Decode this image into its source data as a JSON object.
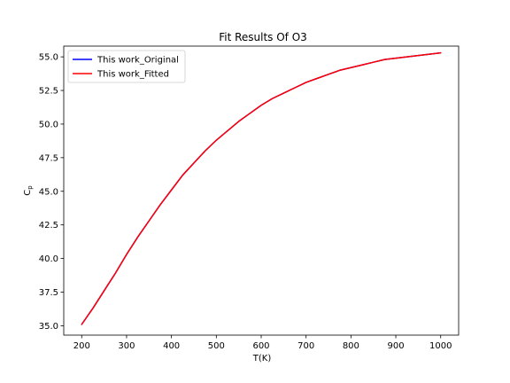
{
  "chart_data": {
    "type": "line",
    "title": "Fit Results Of O3",
    "xlabel": "T(K)",
    "ylabel": "Cp",
    "ylabel_main": "C",
    "ylabel_sub": "p",
    "xlim": [
      160,
      1040
    ],
    "ylim": [
      34.3,
      55.8
    ],
    "xticks": [
      200,
      300,
      400,
      500,
      600,
      700,
      800,
      900,
      1000
    ],
    "xtick_labels": [
      "200",
      "300",
      "400",
      "500",
      "600",
      "700",
      "800",
      "900",
      "1000"
    ],
    "yticks": [
      35.0,
      37.5,
      40.0,
      42.5,
      45.0,
      47.5,
      50.0,
      52.5,
      55.0
    ],
    "ytick_labels": [
      "35.0",
      "37.5",
      "40.0",
      "42.5",
      "45.0",
      "47.5",
      "50.0",
      "52.5",
      "55.0"
    ],
    "grid": false,
    "legend_position": "top-left",
    "x": [
      200,
      225,
      250,
      275,
      300,
      325,
      350,
      375,
      400,
      425,
      450,
      475,
      500,
      525,
      550,
      575,
      600,
      625,
      650,
      675,
      700,
      725,
      750,
      775,
      800,
      825,
      850,
      875,
      900,
      925,
      950,
      975,
      1000
    ],
    "series": [
      {
        "name": "This work_Original",
        "color": "#0000ff",
        "values": [
          35.1,
          36.3,
          37.6,
          38.9,
          40.3,
          41.6,
          42.8,
          44.0,
          45.1,
          46.2,
          47.1,
          48.0,
          48.8,
          49.5,
          50.2,
          50.8,
          51.4,
          51.9,
          52.3,
          52.7,
          53.1,
          53.4,
          53.7,
          54.0,
          54.2,
          54.4,
          54.6,
          54.8,
          54.9,
          55.0,
          55.1,
          55.2,
          55.3
        ]
      },
      {
        "name": "This work_Fitted",
        "color": "#ff0000",
        "values": [
          35.1,
          36.3,
          37.6,
          38.9,
          40.3,
          41.6,
          42.8,
          44.0,
          45.1,
          46.2,
          47.1,
          48.0,
          48.8,
          49.5,
          50.2,
          50.8,
          51.4,
          51.9,
          52.3,
          52.7,
          53.1,
          53.4,
          53.7,
          54.0,
          54.2,
          54.4,
          54.6,
          54.8,
          54.9,
          55.0,
          55.1,
          55.2,
          55.3
        ]
      }
    ]
  }
}
